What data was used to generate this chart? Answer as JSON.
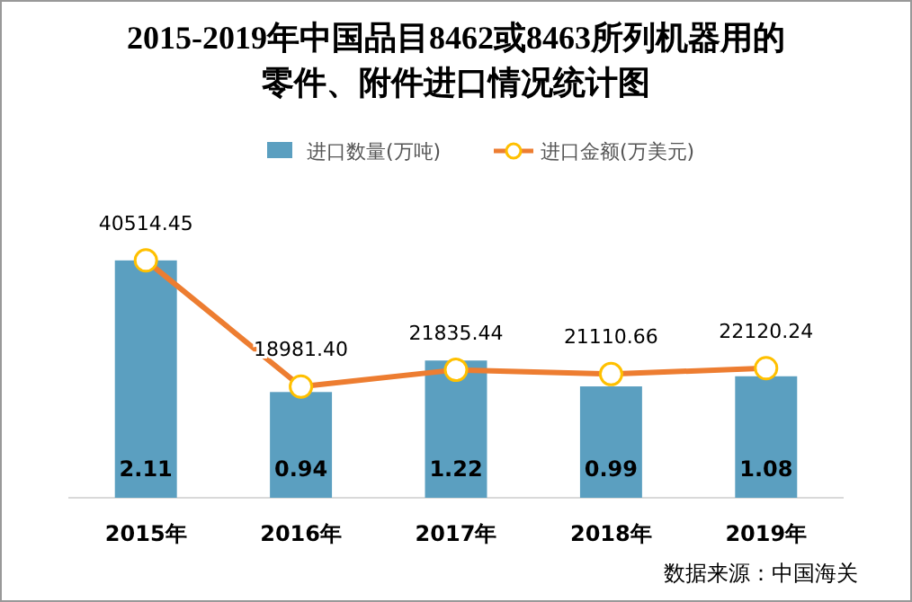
{
  "chart_data": {
    "type": "bar",
    "title": "2015-2019年中国品目8462或8463所列机器用的零件、附件进口情况统计图",
    "categories": [
      "2015年",
      "2016年",
      "2017年",
      "2018年",
      "2019年"
    ],
    "series": [
      {
        "name": "进口数量(万吨)",
        "color": "#5b9fc0",
        "values": [
          2.11,
          0.94,
          1.22,
          0.99,
          1.08
        ],
        "value_labels": [
          "2.11",
          "0.94",
          "1.22",
          "0.99",
          "1.08"
        ]
      },
      {
        "name": "进口金额(万美元)",
        "type": "line",
        "axis": "y2",
        "color": "#ed7d31",
        "values": [
          40514.45,
          18981.4,
          21835.44,
          21110.66,
          22120.24
        ],
        "value_labels": [
          "40514.45",
          "18981.40",
          "21835.44",
          "21110.66",
          "22120.24"
        ],
        "marker": "circle"
      }
    ],
    "legend": "top",
    "annotations": [
      "数据来源：中国海关"
    ]
  }
}
